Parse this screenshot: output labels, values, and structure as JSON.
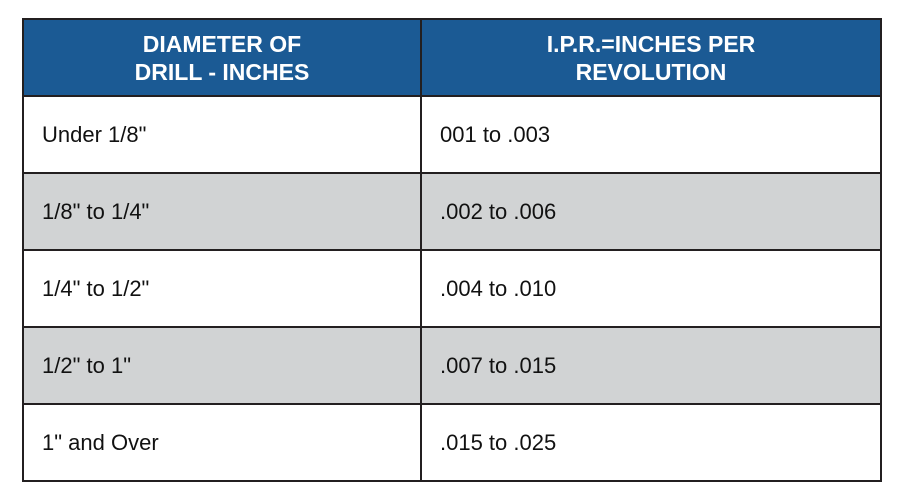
{
  "table": {
    "header": [
      [
        "DIAMETER OF",
        "DRILL - INCHES"
      ],
      [
        "I.P.R.=INCHES PER",
        "REVOLUTION"
      ]
    ],
    "rows": [
      [
        "Under 1/8\"",
        "001 to .003"
      ],
      [
        "1/8\" to 1/4\"",
        ".002 to .006"
      ],
      [
        "1/4\" to 1/2\"",
        ".004 to .010"
      ],
      [
        "1/2\" to 1\"",
        ".007 to .015"
      ],
      [
        "1\" and Over",
        ".015 to .025"
      ]
    ]
  }
}
